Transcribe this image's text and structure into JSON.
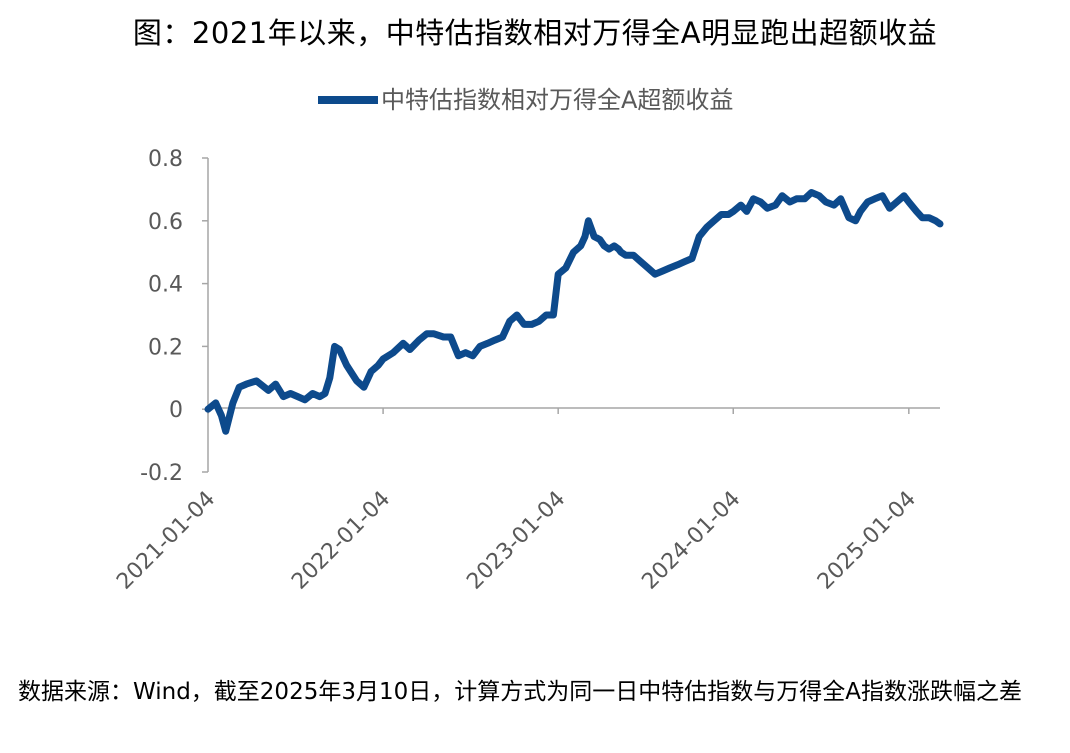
{
  "title": "图：2021年以来，中特估指数相对万得全A明显跑出超额收益",
  "note": "数据来源：Wind，截至2025年3月10日，计算方式为同一日中特估指数与万得全A指数涨跌幅之差",
  "colors": {
    "series": "#0d4a8c",
    "axis": "#a6a6a6",
    "label": "#595959"
  },
  "chart_data": {
    "type": "line",
    "title": "",
    "xlabel": "",
    "ylabel": "",
    "ylim": [
      -0.2,
      0.8
    ],
    "yticks": [
      "0.8",
      "0.6",
      "0.4",
      "0.2",
      "0",
      "-0.2"
    ],
    "ytick_values": [
      0.8,
      0.6,
      0.4,
      0.2,
      0,
      -0.2
    ],
    "xticks": [
      "2021-01-04",
      "2022-01-04",
      "2023-01-04",
      "2024-01-04",
      "2025-01-04"
    ],
    "xlim": [
      "2021-01-04",
      "2025-03-10"
    ],
    "grid": false,
    "legend": "top",
    "series": [
      {
        "name": "中特估指数相对万得全A超额收益",
        "x": [
          "2021-01-04",
          "2021-01-20",
          "2021-02-01",
          "2021-02-10",
          "2021-02-25",
          "2021-03-10",
          "2021-03-25",
          "2021-04-15",
          "2021-05-10",
          "2021-05-25",
          "2021-06-10",
          "2021-06-25",
          "2021-07-10",
          "2021-07-25",
          "2021-08-10",
          "2021-08-25",
          "2021-09-05",
          "2021-09-15",
          "2021-09-25",
          "2021-10-05",
          "2021-10-20",
          "2021-11-10",
          "2021-11-25",
          "2021-12-10",
          "2021-12-25",
          "2022-01-04",
          "2022-01-25",
          "2022-02-15",
          "2022-03-01",
          "2022-03-20",
          "2022-04-05",
          "2022-04-20",
          "2022-05-10",
          "2022-05-25",
          "2022-06-10",
          "2022-06-25",
          "2022-07-10",
          "2022-07-25",
          "2022-08-10",
          "2022-08-25",
          "2022-09-10",
          "2022-09-25",
          "2022-10-10",
          "2022-10-25",
          "2022-11-10",
          "2022-11-25",
          "2022-12-10",
          "2022-12-25",
          "2023-01-04",
          "2023-01-20",
          "2023-02-05",
          "2023-02-20",
          "2023-03-01",
          "2023-03-08",
          "2023-03-20",
          "2023-04-01",
          "2023-04-10",
          "2023-04-20",
          "2023-05-01",
          "2023-05-10",
          "2023-05-15",
          "2023-05-25",
          "2023-06-10",
          "2023-06-25",
          "2023-07-10",
          "2023-07-25",
          "2023-08-10",
          "2023-08-25",
          "2023-09-10",
          "2023-09-25",
          "2023-10-10",
          "2023-10-25",
          "2023-11-10",
          "2023-11-25",
          "2023-12-10",
          "2023-12-25",
          "2024-01-04",
          "2024-01-20",
          "2024-02-01",
          "2024-02-15",
          "2024-03-01",
          "2024-03-15",
          "2024-04-01",
          "2024-04-15",
          "2024-05-01",
          "2024-05-15",
          "2024-06-01",
          "2024-06-15",
          "2024-07-01",
          "2024-07-15",
          "2024-08-01",
          "2024-08-15",
          "2024-09-01",
          "2024-09-15",
          "2024-09-25",
          "2024-10-10",
          "2024-10-25",
          "2024-11-10",
          "2024-11-25",
          "2024-12-10",
          "2024-12-25",
          "2025-01-04",
          "2025-01-20",
          "2025-02-01",
          "2025-02-15",
          "2025-03-01",
          "2025-03-10"
        ],
        "values": [
          0.0,
          0.02,
          -0.02,
          -0.07,
          0.02,
          0.07,
          0.08,
          0.09,
          0.06,
          0.08,
          0.04,
          0.05,
          0.04,
          0.03,
          0.05,
          0.04,
          0.05,
          0.1,
          0.2,
          0.19,
          0.14,
          0.09,
          0.07,
          0.12,
          0.14,
          0.16,
          0.18,
          0.21,
          0.19,
          0.22,
          0.24,
          0.24,
          0.23,
          0.23,
          0.17,
          0.18,
          0.17,
          0.2,
          0.21,
          0.22,
          0.23,
          0.28,
          0.3,
          0.27,
          0.27,
          0.28,
          0.3,
          0.3,
          0.43,
          0.45,
          0.5,
          0.52,
          0.55,
          0.6,
          0.55,
          0.54,
          0.52,
          0.51,
          0.52,
          0.51,
          0.5,
          0.49,
          0.49,
          0.47,
          0.45,
          0.43,
          0.44,
          0.45,
          0.46,
          0.47,
          0.48,
          0.55,
          0.58,
          0.6,
          0.62,
          0.62,
          0.63,
          0.65,
          0.63,
          0.67,
          0.66,
          0.64,
          0.65,
          0.68,
          0.66,
          0.67,
          0.67,
          0.69,
          0.68,
          0.66,
          0.65,
          0.67,
          0.61,
          0.6,
          0.63,
          0.66,
          0.67,
          0.68,
          0.64,
          0.66,
          0.68,
          0.66,
          0.63,
          0.61,
          0.61,
          0.6,
          0.59
        ]
      }
    ]
  }
}
